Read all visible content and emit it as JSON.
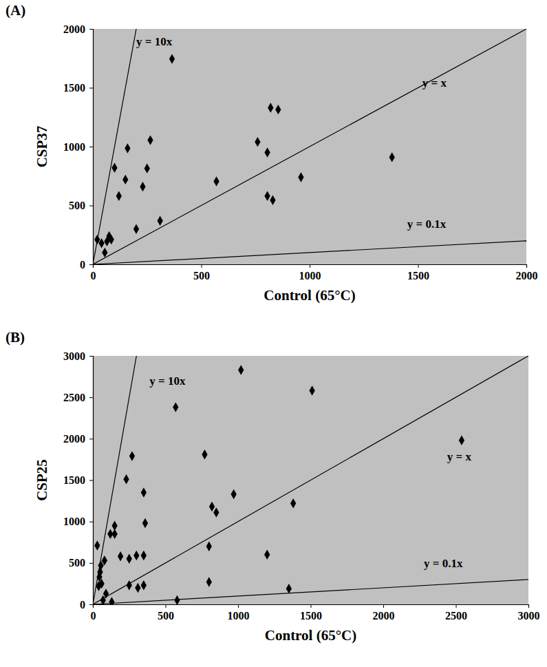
{
  "chart_data": [
    {
      "type": "scatter",
      "title": "(A)",
      "x_label": "Control (65°C)",
      "y_label": "CSP37",
      "color": "#000000",
      "marker": "diamond",
      "xlim": [
        0,
        2000
      ],
      "xticks": [
        0,
        500,
        1000,
        1500,
        2000
      ],
      "ylim": [
        0,
        2000
      ],
      "yticks": [
        0,
        500,
        1000,
        1500,
        2000
      ],
      "x": [
        365,
        160,
        265,
        100,
        250,
        150,
        230,
        120,
        200,
        310,
        20,
        40,
        75,
        85,
        55,
        65,
        570,
        760,
        820,
        855,
        805,
        805,
        830,
        960,
        1380
      ],
      "values": [
        1745,
        985,
        1055,
        820,
        815,
        720,
        660,
        580,
        300,
        370,
        210,
        180,
        240,
        210,
        100,
        195,
        705,
        1040,
        1330,
        1315,
        950,
        580,
        545,
        740,
        910
      ],
      "reference_lines": [
        {
          "label": "y = 10x",
          "slope": 10,
          "label_at": [
            200,
            1880
          ]
        },
        {
          "label": "y = x",
          "slope": 1,
          "label_at": [
            1520,
            1530
          ]
        },
        {
          "label": "y = 0.1x",
          "slope": 0.1,
          "label_at": [
            1450,
            335
          ]
        }
      ]
    },
    {
      "type": "scatter",
      "title": "(B)",
      "x_label": "Control (65°C)",
      "y_label": "CSP25",
      "color": "#000000",
      "marker": "diamond",
      "xlim": [
        0,
        3000
      ],
      "xticks": [
        0,
        500,
        1000,
        1500,
        2000,
        2500,
        3000
      ],
      "ylim": [
        0,
        3000
      ],
      "yticks": [
        0,
        500,
        1000,
        1500,
        2000,
        2500,
        3000
      ],
      "x": [
        1020,
        1510,
        570,
        2540,
        270,
        770,
        230,
        350,
        970,
        820,
        850,
        1380,
        150,
        120,
        150,
        360,
        30,
        80,
        55,
        50,
        45,
        60,
        40,
        90,
        70,
        130,
        190,
        250,
        300,
        350,
        250,
        310,
        350,
        800,
        800,
        1200,
        1350,
        580
      ],
      "values": [
        2830,
        2580,
        2380,
        1980,
        1790,
        1810,
        1510,
        1350,
        1330,
        1180,
        1110,
        1220,
        950,
        850,
        850,
        980,
        710,
        530,
        470,
        390,
        330,
        250,
        220,
        130,
        50,
        30,
        580,
        550,
        590,
        590,
        230,
        200,
        230,
        700,
        270,
        600,
        190,
        50
      ],
      "reference_lines": [
        {
          "label": "y = 10x",
          "slope": 10,
          "label_at": [
            390,
            2680
          ]
        },
        {
          "label": "y = x",
          "slope": 1,
          "label_at": [
            2440,
            1770
          ]
        },
        {
          "label": "y = 0.1x",
          "slope": 0.1,
          "label_at": [
            2280,
            480
          ]
        }
      ]
    }
  ]
}
